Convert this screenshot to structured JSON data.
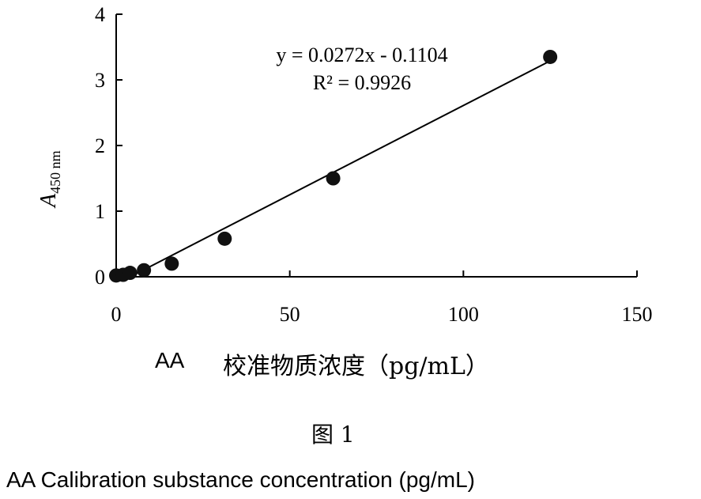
{
  "chart_data": {
    "type": "scatter",
    "x": [
      0,
      2,
      4,
      8,
      16,
      31.25,
      62.5,
      125
    ],
    "y": [
      0.02,
      0.03,
      0.06,
      0.1,
      0.2,
      0.58,
      1.5,
      3.35
    ],
    "trendline": {
      "slope": 0.0272,
      "intercept": -0.1104
    },
    "equation": "y = 0.0272x - 0.1104",
    "r_squared": "R² = 0.9926",
    "xlim": [
      0,
      150
    ],
    "ylim": [
      0,
      4
    ],
    "xticks": [
      "0",
      "50",
      "100",
      "150"
    ],
    "yticks": [
      "0",
      "1",
      "2",
      "3",
      "4"
    ],
    "ylabel_main": "A",
    "ylabel_sub": "450 nm",
    "xlabel_prefix": "AA",
    "xlabel": "校准物质浓度（pg/mL）",
    "grid": false,
    "marker_color": "#111111"
  },
  "figure": {
    "label": "图 1",
    "caption": "AA Calibration substance concentration (pg/mL)"
  }
}
